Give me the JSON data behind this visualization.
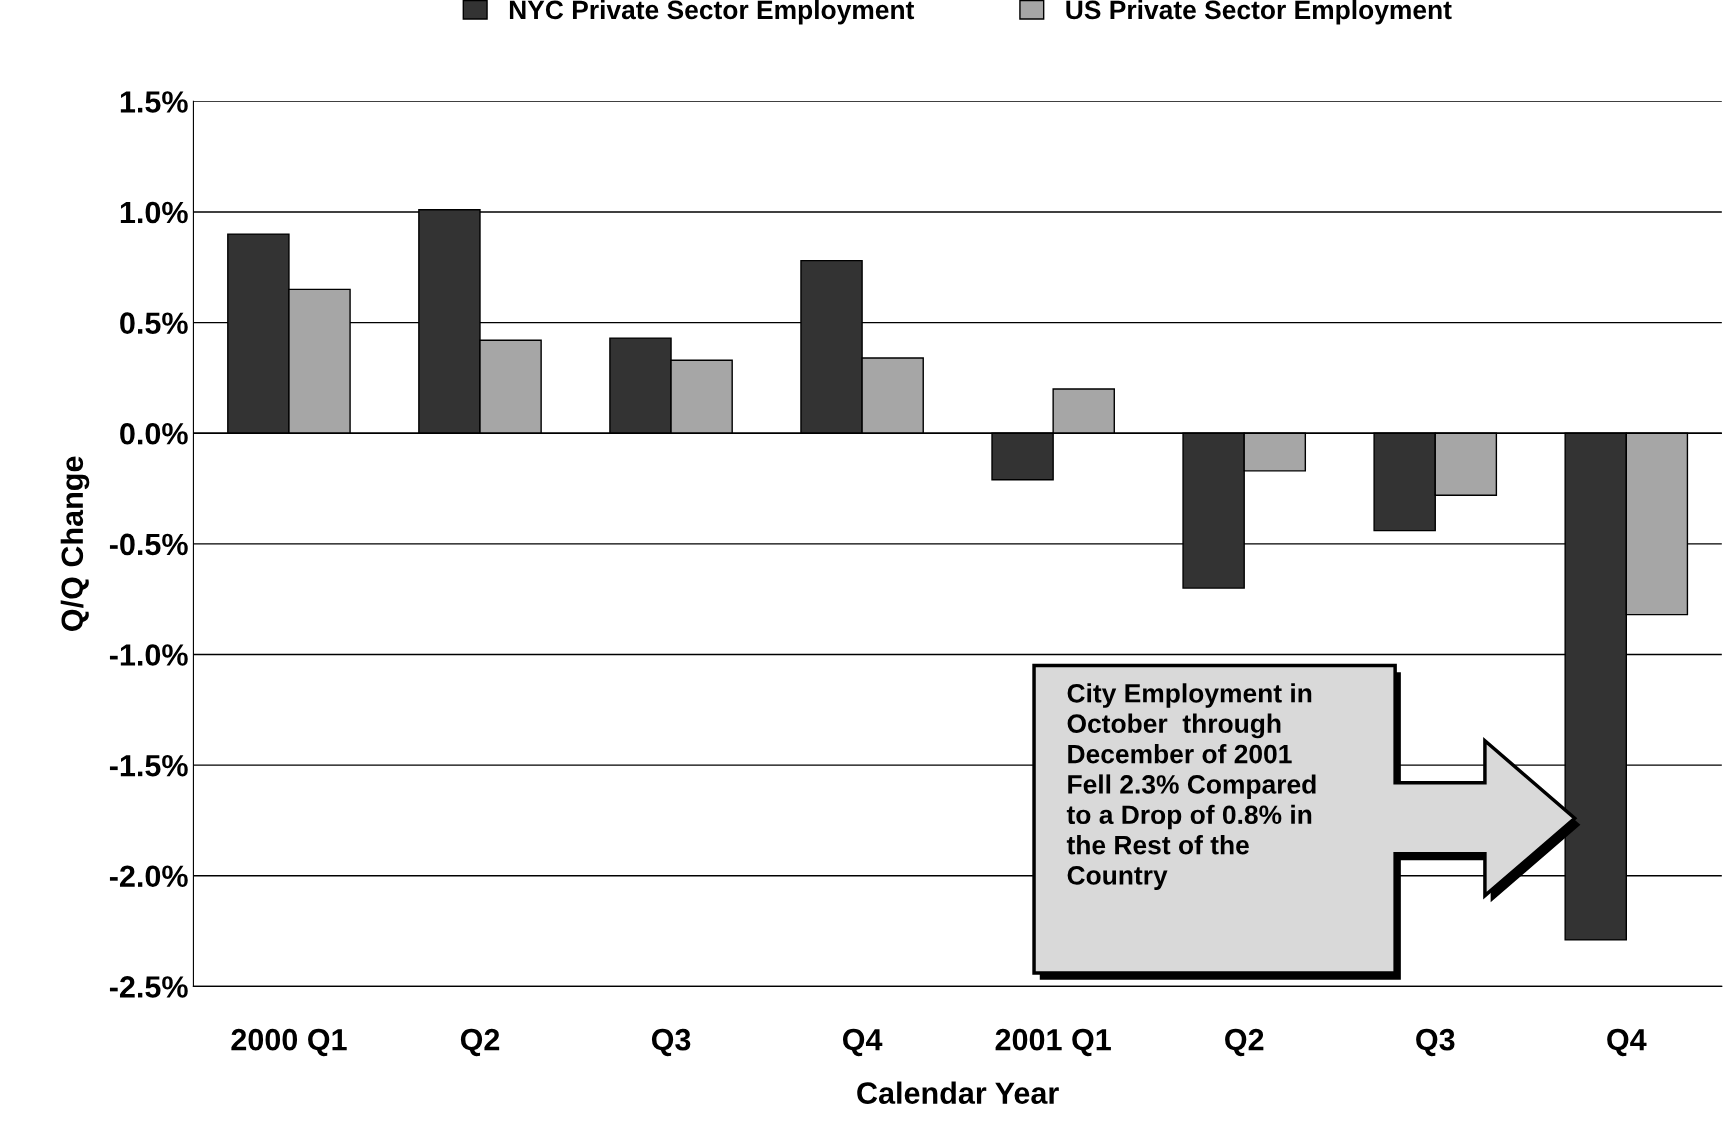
{
  "chart_data": {
    "type": "bar",
    "xlabel": "Calendar Year",
    "ylabel": "Q/Q Change",
    "categories": [
      "2000 Q1",
      "Q2",
      "Q3",
      "Q4",
      "2001 Q1",
      "Q2",
      "Q3",
      "Q4"
    ],
    "series": [
      {
        "name": "NYC Private Sector Employment",
        "color": "#333333",
        "values": [
          0.9,
          1.01,
          0.43,
          0.78,
          -0.21,
          -0.7,
          -0.44,
          -2.29
        ]
      },
      {
        "name": "US Private Sector Employment",
        "color": "#a6a6a6",
        "values": [
          0.65,
          0.42,
          0.33,
          0.34,
          0.2,
          -0.17,
          -0.28,
          -0.82
        ]
      }
    ],
    "ylim": [
      -2.5,
      1.5
    ],
    "yticks": [
      {
        "value": -2.5,
        "label": "-2.5%"
      },
      {
        "value": -2.0,
        "label": "-2.0%"
      },
      {
        "value": -1.5,
        "label": "-1.5%"
      },
      {
        "value": -1.0,
        "label": "-1.0%"
      },
      {
        "value": -0.5,
        "label": "-0.5%"
      },
      {
        "value": 0.0,
        "label": "0.0%"
      },
      {
        "value": 0.5,
        "label": "0.5%"
      },
      {
        "value": 1.0,
        "label": "1.0%"
      },
      {
        "value": 1.5,
        "label": "1.5%"
      }
    ],
    "grid": "y",
    "legend": "top",
    "annotations": [
      "City Employment in\nOctober  through\nDecember of 2001\nFell 2.3% Compared\nto a Drop of 0.8% in\nthe Rest of the\nCountry"
    ]
  }
}
